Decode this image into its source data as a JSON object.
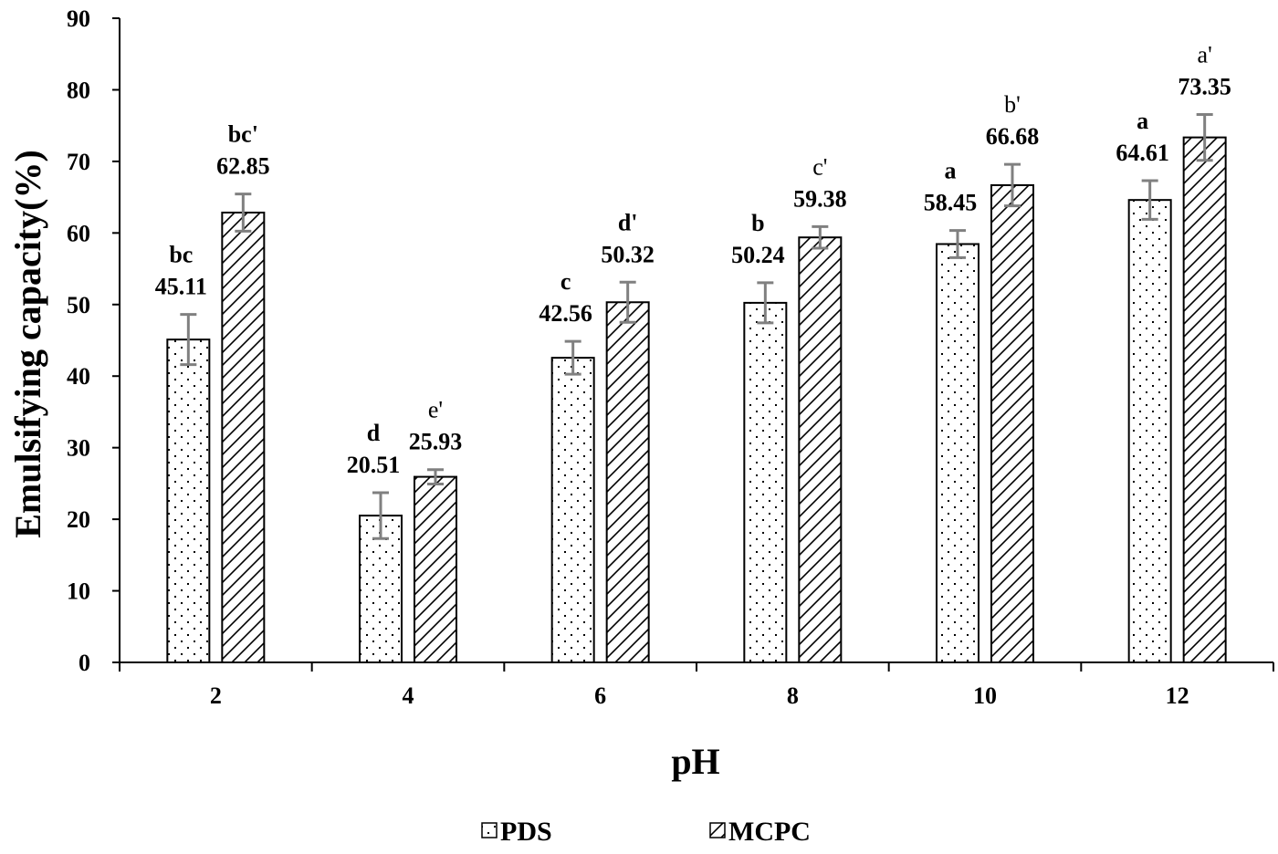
{
  "chart_data": {
    "type": "bar",
    "categories": [
      "2",
      "4",
      "6",
      "8",
      "10",
      "12"
    ],
    "xlabel": "pH",
    "ylabel": "Emulsifying capacity(%)",
    "ylim": [
      0,
      90
    ],
    "yticks": [
      "0",
      "10",
      "20",
      "30",
      "40",
      "50",
      "60",
      "70",
      "80",
      "90"
    ],
    "grid": false,
    "legend_position": "bottom",
    "series": [
      {
        "name": "PDS",
        "pattern": "dots",
        "values": [
          45.11,
          20.51,
          42.56,
          50.24,
          58.45,
          64.61
        ],
        "value_labels": [
          "45.11",
          "20.51",
          "42.56",
          "50.24",
          "58.45",
          "64.61"
        ],
        "errors": [
          3.5,
          3.2,
          2.3,
          2.8,
          1.9,
          2.7
        ],
        "letters": [
          "bc",
          "d",
          "c",
          "b",
          "a",
          "a"
        ],
        "letters_bold": true
      },
      {
        "name": "MCPC",
        "pattern": "hatch",
        "values": [
          62.85,
          25.93,
          50.32,
          59.38,
          66.68,
          73.35
        ],
        "value_labels": [
          "62.85",
          "25.93",
          "50.32",
          "59.38",
          "66.68",
          "73.35"
        ],
        "errors": [
          2.6,
          1.0,
          2.8,
          1.5,
          2.9,
          3.2
        ],
        "letters": [
          "bc'",
          "e'",
          "d'",
          "c'",
          "b'",
          "a'"
        ],
        "letters_bold_flags": [
          true,
          false,
          true,
          false,
          false,
          false
        ]
      }
    ]
  },
  "colors": {
    "bar_fill": "#ffffff",
    "bar_stroke": "#000000",
    "error_bar": "#808080",
    "axis": "#000000"
  }
}
